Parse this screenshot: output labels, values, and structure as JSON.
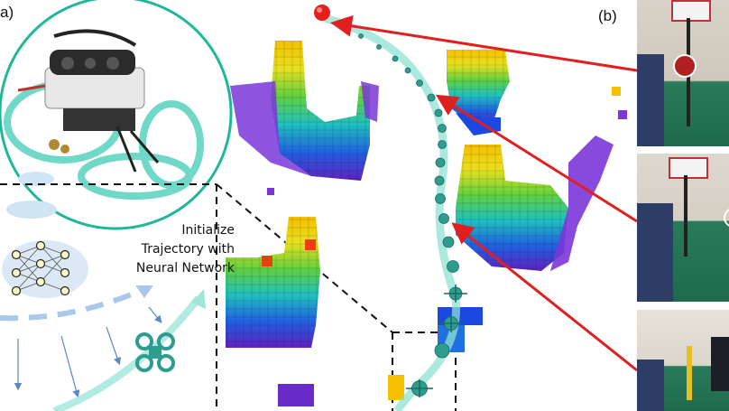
{
  "panel_a": {
    "label": "a)",
    "caption_lines": [
      "Initialize",
      "Trajectory with",
      "Neural Network"
    ]
  },
  "panel_b": {
    "label": "(b)"
  },
  "colors": {
    "trajectory": "#7fd6c8",
    "drone": "#2e9c8e",
    "target": "#e81e1e",
    "arrow": "#e02020",
    "circle": "#1fb79a",
    "dashed_arrow": "#8db8e0"
  },
  "icons": [
    "drone-photo",
    "neural-network-icon",
    "quadrotor-icon",
    "target-ball-icon"
  ]
}
